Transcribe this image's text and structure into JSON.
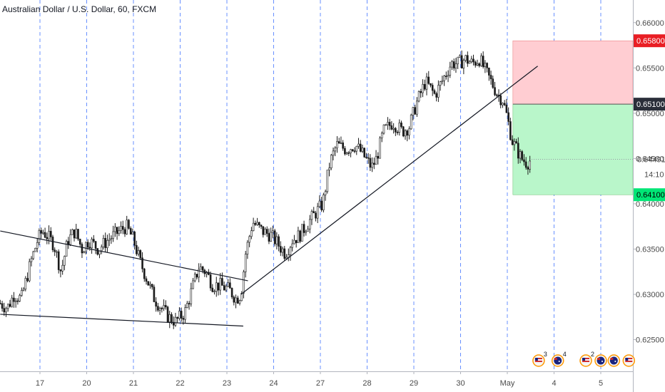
{
  "title": "Australian Dollar / U.S. Dollar, 60, FXCM",
  "colors": {
    "candle": "#1a1a1a",
    "grid": "#2962ff",
    "stop_zone": "#ffcdd2",
    "target_zone": "#b9f6ca",
    "stop_badge": "#e91e24",
    "entry_badge": "#2a2e39",
    "target_badge": "#00e676",
    "axis_text": "#4a4a4a"
  },
  "chart_data": {
    "type": "candlestick",
    "symbol": "AUDUSD",
    "timeframe": "60",
    "ylim": [
      0.6215,
      0.6625
    ],
    "y_ticks": [
      0.625,
      0.63,
      0.635,
      0.64,
      0.645,
      0.65,
      0.655,
      0.66
    ],
    "y_tick_labels": [
      "0.62500",
      "0.63000",
      "0.63500",
      "0.64000",
      "0.64500",
      "0.65000",
      "0.65500",
      "0.66000"
    ],
    "x_ticks": [
      {
        "label": "17",
        "day": 0
      },
      {
        "label": "20",
        "day": 1
      },
      {
        "label": "21",
        "day": 2
      },
      {
        "label": "22",
        "day": 3
      },
      {
        "label": "23",
        "day": 4
      },
      {
        "label": "24",
        "day": 5
      },
      {
        "label": "27",
        "day": 6
      },
      {
        "label": "28",
        "day": 7
      },
      {
        "label": "29",
        "day": 8
      },
      {
        "label": "30",
        "day": 9
      },
      {
        "label": "May",
        "day": 10
      },
      {
        "label": "4",
        "day": 11
      },
      {
        "label": "5",
        "day": 12
      }
    ],
    "x_range_days": [
      -0.85,
      12.65
    ],
    "price_path_close": [
      [
        -0.85,
        0.629
      ],
      [
        -0.7,
        0.6285
      ],
      [
        -0.55,
        0.63
      ],
      [
        -0.4,
        0.6295
      ],
      [
        -0.2,
        0.6335
      ],
      [
        -0.05,
        0.636
      ],
      [
        0.05,
        0.637
      ],
      [
        0.15,
        0.6365
      ],
      [
        0.3,
        0.6355
      ],
      [
        0.45,
        0.6325
      ],
      [
        0.6,
        0.636
      ],
      [
        0.75,
        0.637
      ],
      [
        0.9,
        0.635
      ],
      [
        1.05,
        0.636
      ],
      [
        1.25,
        0.635
      ],
      [
        1.45,
        0.636
      ],
      [
        1.7,
        0.637
      ],
      [
        1.85,
        0.6375
      ],
      [
        2.0,
        0.636
      ],
      [
        2.15,
        0.6335
      ],
      [
        2.3,
        0.6315
      ],
      [
        2.45,
        0.6295
      ],
      [
        2.6,
        0.6285
      ],
      [
        2.75,
        0.6275
      ],
      [
        2.9,
        0.627
      ],
      [
        3.1,
        0.628
      ],
      [
        3.25,
        0.6305
      ],
      [
        3.4,
        0.633
      ],
      [
        3.55,
        0.6325
      ],
      [
        3.7,
        0.631
      ],
      [
        3.85,
        0.631
      ],
      [
        4.05,
        0.6305
      ],
      [
        4.2,
        0.6295
      ],
      [
        4.3,
        0.63
      ],
      [
        4.4,
        0.6345
      ],
      [
        4.55,
        0.638
      ],
      [
        4.75,
        0.637
      ],
      [
        4.95,
        0.6365
      ],
      [
        5.1,
        0.6355
      ],
      [
        5.25,
        0.6345
      ],
      [
        5.4,
        0.636
      ],
      [
        5.55,
        0.6365
      ],
      [
        5.75,
        0.638
      ],
      [
        5.9,
        0.639
      ],
      [
        6.05,
        0.64
      ],
      [
        6.2,
        0.6445
      ],
      [
        6.35,
        0.6465
      ],
      [
        6.55,
        0.646
      ],
      [
        6.75,
        0.6465
      ],
      [
        6.9,
        0.6455
      ],
      [
        7.1,
        0.644
      ],
      [
        7.2,
        0.645
      ],
      [
        7.35,
        0.648
      ],
      [
        7.55,
        0.649
      ],
      [
        7.75,
        0.648
      ],
      [
        7.9,
        0.6485
      ],
      [
        8.05,
        0.651
      ],
      [
        8.25,
        0.6535
      ],
      [
        8.45,
        0.652
      ],
      [
        8.65,
        0.654
      ],
      [
        8.8,
        0.6555
      ],
      [
        8.95,
        0.6555
      ],
      [
        9.1,
        0.656
      ],
      [
        9.25,
        0.6555
      ],
      [
        9.4,
        0.656
      ],
      [
        9.55,
        0.6545
      ],
      [
        9.7,
        0.653
      ],
      [
        9.8,
        0.652
      ],
      [
        9.9,
        0.6515
      ],
      [
        10.0,
        0.6495
      ],
      [
        10.1,
        0.647
      ],
      [
        10.2,
        0.646
      ],
      [
        10.3,
        0.645
      ],
      [
        10.42,
        0.6445
      ],
      [
        10.52,
        0.6449
      ]
    ],
    "trendlines": [
      {
        "name": "descending-resistance",
        "from": [
          -0.85,
          0.637
        ],
        "to": [
          4.45,
          0.6315
        ]
      },
      {
        "name": "descending-support",
        "from": [
          -0.85,
          0.6278
        ],
        "to": [
          4.35,
          0.6265
        ]
      },
      {
        "name": "ascending-support",
        "from": [
          4.3,
          0.63
        ],
        "to": [
          10.65,
          0.6552
        ]
      }
    ],
    "position": {
      "type": "short",
      "start_day": 10.12,
      "end_day": 12.65,
      "stop": 0.658,
      "entry": 0.651,
      "target": 0.641
    },
    "price_labels": {
      "stop": "0.65800",
      "entry": "0.65100",
      "current": "0.64491",
      "target": "0.64100"
    },
    "current_price": 0.64491,
    "countdown": "14:10",
    "events": [
      {
        "day": 10.67,
        "flag": "us-flag-icon",
        "count": "3"
      },
      {
        "day": 11.08,
        "flag": "au-flag-icon",
        "count": "4"
      },
      {
        "day": 11.68,
        "flag": "us-flag-icon",
        "count": "2"
      },
      {
        "day": 12.0,
        "flag": "au-flag-icon",
        "count": ""
      },
      {
        "day": 12.28,
        "flag": "au-flag-icon",
        "count": ""
      },
      {
        "day": 12.6,
        "flag": "us-flag-icon",
        "count": ""
      }
    ]
  }
}
